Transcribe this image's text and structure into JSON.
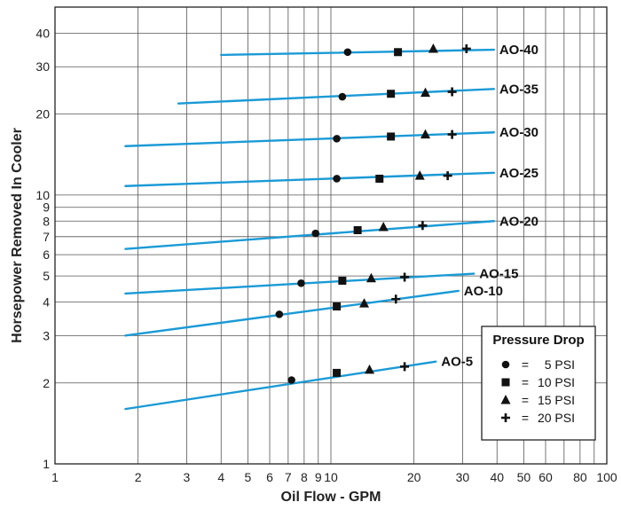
{
  "chart_data": {
    "type": "line",
    "x_scale": "log",
    "y_scale": "log",
    "xlim": [
      1,
      100
    ],
    "ylim": [
      1,
      50
    ],
    "grid": true,
    "xlabel": "Oil  Flow - GPM",
    "ylabel": "Horsepower Removed In Cooler",
    "x_ticks": [
      "1",
      "2",
      "3",
      "4",
      "5",
      "6",
      "7",
      "8",
      "9",
      "10",
      "20",
      "30",
      "40",
      "50",
      "60",
      "80",
      "100"
    ],
    "x_tick_values": [
      1,
      2,
      3,
      4,
      5,
      6,
      7,
      8,
      9,
      10,
      20,
      30,
      40,
      50,
      60,
      80,
      100
    ],
    "y_ticks": [
      "1",
      "2",
      "3",
      "4",
      "5",
      "6",
      "7",
      "8",
      "9",
      "10",
      "20",
      "30",
      "40"
    ],
    "y_tick_values": [
      1,
      2,
      3,
      4,
      5,
      6,
      7,
      8,
      9,
      10,
      20,
      30,
      40
    ],
    "line_color": "#1a9ad6",
    "legend": {
      "title": "Pressure Drop",
      "position": "bottom-right",
      "entries": [
        {
          "marker": "circle",
          "equals": "=",
          "label": "5 PSI"
        },
        {
          "marker": "square",
          "equals": "=",
          "label": "10 PSI"
        },
        {
          "marker": "triangle",
          "equals": "=",
          "label": "15 PSI"
        },
        {
          "marker": "plus",
          "equals": "=",
          "label": "20 PSI"
        }
      ]
    },
    "series": [
      {
        "name": "AO-40",
        "line": [
          [
            4,
            33.2
          ],
          [
            39,
            34.7
          ]
        ],
        "points": {
          "5": [
            11.5,
            34
          ],
          "10": [
            17.5,
            34
          ],
          "15": [
            23.5,
            35
          ],
          "20": [
            31,
            35
          ]
        }
      },
      {
        "name": "AO-35",
        "line": [
          [
            2.8,
            21.9
          ],
          [
            39,
            24.8
          ]
        ],
        "points": {
          "5": [
            11,
            23.2
          ],
          "10": [
            16.5,
            23.8
          ],
          "15": [
            22,
            24
          ],
          "20": [
            27.5,
            24.2
          ]
        }
      },
      {
        "name": "AO-30",
        "line": [
          [
            1.8,
            15.2
          ],
          [
            39,
            17.1
          ]
        ],
        "points": {
          "5": [
            10.5,
            16.2
          ],
          "10": [
            16.5,
            16.5
          ],
          "15": [
            22,
            16.8
          ],
          "20": [
            27.5,
            16.8
          ]
        }
      },
      {
        "name": "AO-25",
        "line": [
          [
            1.8,
            10.8
          ],
          [
            39,
            12.1
          ]
        ],
        "points": {
          "5": [
            10.5,
            11.5
          ],
          "10": [
            15,
            11.5
          ],
          "15": [
            21,
            11.8
          ],
          "20": [
            26.5,
            11.8
          ]
        }
      },
      {
        "name": "AO-20",
        "line": [
          [
            1.8,
            6.3
          ],
          [
            39,
            8.0
          ]
        ],
        "points": {
          "5": [
            8.8,
            7.2
          ],
          "10": [
            12.5,
            7.4
          ],
          "15": [
            15.5,
            7.6
          ],
          "20": [
            21.5,
            7.7
          ]
        }
      },
      {
        "name": "AO-15",
        "line": [
          [
            1.8,
            4.3
          ],
          [
            33,
            5.1
          ]
        ],
        "points": {
          "5": [
            7.8,
            4.7
          ],
          "10": [
            11,
            4.8
          ],
          "15": [
            14,
            4.9
          ],
          "20": [
            18.5,
            4.95
          ]
        }
      },
      {
        "name": "AO-10",
        "line": [
          [
            1.8,
            3.0
          ],
          [
            29,
            4.4
          ]
        ],
        "points": {
          "5": [
            6.5,
            3.6
          ],
          "10": [
            10.5,
            3.85
          ],
          "15": [
            13.2,
            3.95
          ],
          "20": [
            17.2,
            4.1
          ]
        }
      },
      {
        "name": "AO-5",
        "line": [
          [
            1.8,
            1.6
          ],
          [
            24,
            2.4
          ]
        ],
        "points": {
          "5": [
            7.2,
            2.05
          ],
          "10": [
            10.5,
            2.18
          ],
          "15": [
            13.8,
            2.24
          ],
          "20": [
            18.5,
            2.3
          ]
        }
      }
    ]
  }
}
